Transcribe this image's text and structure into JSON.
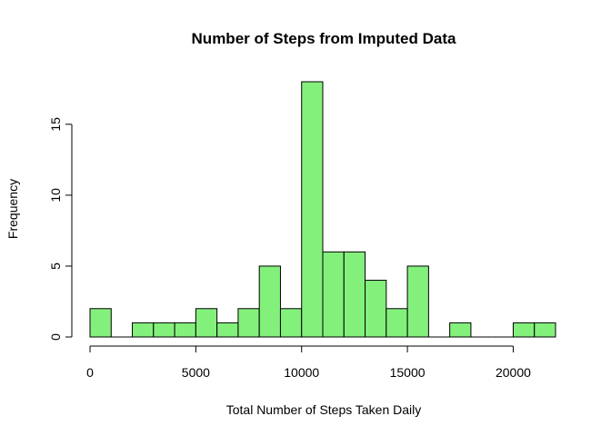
{
  "chart_data": {
    "type": "bar",
    "subtype": "histogram",
    "title": "Number of Steps from Imputed Data",
    "xlabel": "Total Number of Steps Taken Daily",
    "ylabel": "Frequency",
    "bin_width": 1000,
    "bins": [
      {
        "start": 0,
        "end": 1000,
        "count": 2
      },
      {
        "start": 1000,
        "end": 2000,
        "count": 0
      },
      {
        "start": 2000,
        "end": 3000,
        "count": 1
      },
      {
        "start": 3000,
        "end": 4000,
        "count": 1
      },
      {
        "start": 4000,
        "end": 5000,
        "count": 1
      },
      {
        "start": 5000,
        "end": 6000,
        "count": 2
      },
      {
        "start": 6000,
        "end": 7000,
        "count": 1
      },
      {
        "start": 7000,
        "end": 8000,
        "count": 2
      },
      {
        "start": 8000,
        "end": 9000,
        "count": 5
      },
      {
        "start": 9000,
        "end": 10000,
        "count": 2
      },
      {
        "start": 10000,
        "end": 11000,
        "count": 18
      },
      {
        "start": 11000,
        "end": 12000,
        "count": 6
      },
      {
        "start": 12000,
        "end": 13000,
        "count": 6
      },
      {
        "start": 13000,
        "end": 14000,
        "count": 4
      },
      {
        "start": 14000,
        "end": 15000,
        "count": 2
      },
      {
        "start": 15000,
        "end": 16000,
        "count": 5
      },
      {
        "start": 16000,
        "end": 17000,
        "count": 0
      },
      {
        "start": 17000,
        "end": 18000,
        "count": 1
      },
      {
        "start": 18000,
        "end": 19000,
        "count": 0
      },
      {
        "start": 19000,
        "end": 20000,
        "count": 0
      },
      {
        "start": 20000,
        "end": 21000,
        "count": 1
      },
      {
        "start": 21000,
        "end": 22000,
        "count": 1
      }
    ],
    "xlim": [
      0,
      22000
    ],
    "ylim": [
      0,
      18
    ],
    "x_ticks": [
      0,
      5000,
      10000,
      15000,
      20000
    ],
    "x_tick_labels": [
      "0",
      "5000",
      "10000",
      "15000",
      "20000"
    ],
    "y_ticks": [
      0,
      5,
      10,
      15
    ],
    "y_tick_labels": [
      "0",
      "5",
      "10",
      "15"
    ],
    "bar_color": "#84F07C",
    "bar_border_color": "#000000",
    "grid": false,
    "legend": "none"
  }
}
